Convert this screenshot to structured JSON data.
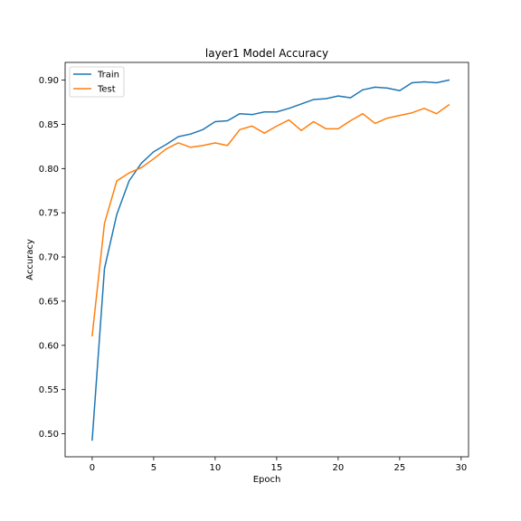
{
  "chart_data": {
    "type": "line",
    "title": "layer1 Model Accuracy",
    "xlabel": "Epoch",
    "ylabel": "Accuracy",
    "xlim": [
      -2.2,
      30.6
    ],
    "ylim": [
      0.474,
      0.92
    ],
    "xticks": [
      0,
      5,
      10,
      15,
      20,
      25,
      30
    ],
    "yticks": [
      0.5,
      0.55,
      0.6,
      0.65,
      0.7,
      0.75,
      0.8,
      0.85,
      0.9
    ],
    "xtick_labels": [
      "0",
      "5",
      "10",
      "15",
      "20",
      "25",
      "30"
    ],
    "ytick_labels": [
      "0.50",
      "0.55",
      "0.60",
      "0.65",
      "0.70",
      "0.75",
      "0.80",
      "0.85",
      "0.90"
    ],
    "legend_position": "top-left",
    "grid": false,
    "x": [
      0,
      1,
      2,
      3,
      4,
      5,
      6,
      7,
      8,
      9,
      10,
      11,
      12,
      13,
      14,
      15,
      16,
      17,
      18,
      19,
      20,
      21,
      22,
      23,
      24,
      25,
      26,
      27,
      28,
      29
    ],
    "series": [
      {
        "name": "Train",
        "color": "#1f77b4",
        "values": [
          0.493,
          0.687,
          0.748,
          0.786,
          0.806,
          0.819,
          0.827,
          0.836,
          0.839,
          0.844,
          0.853,
          0.854,
          0.862,
          0.861,
          0.864,
          0.864,
          0.868,
          0.873,
          0.878,
          0.879,
          0.882,
          0.88,
          0.889,
          0.892,
          0.891,
          0.888,
          0.897,
          0.898,
          0.897,
          0.9
        ]
      },
      {
        "name": "Test",
        "color": "#ff7f0e",
        "values": [
          0.611,
          0.738,
          0.786,
          0.795,
          0.801,
          0.811,
          0.822,
          0.829,
          0.824,
          0.826,
          0.829,
          0.826,
          0.844,
          0.848,
          0.84,
          0.848,
          0.855,
          0.843,
          0.853,
          0.845,
          0.845,
          0.854,
          0.862,
          0.851,
          0.857,
          0.86,
          0.863,
          0.868,
          0.862,
          0.872
        ]
      }
    ]
  }
}
